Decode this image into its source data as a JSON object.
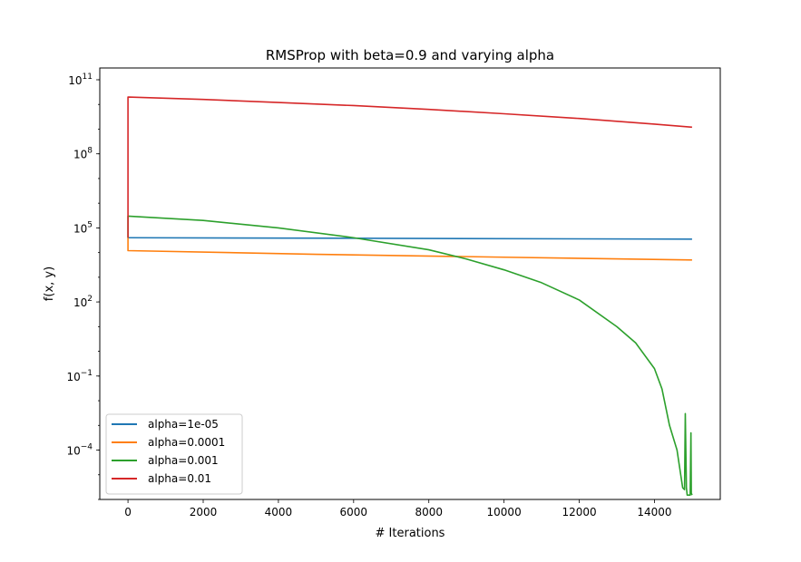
{
  "chart_data": {
    "type": "line",
    "title": "RMSProp with beta=0.9 and varying alpha",
    "xlabel": "# Iterations",
    "ylabel": "f(x, y)",
    "xlim": [
      -750,
      15750
    ],
    "ylim": [
      1e-06,
      300000000000.0
    ],
    "yscale": "log",
    "grid": false,
    "legend_position": "lower-left",
    "xticks": [
      0,
      2000,
      4000,
      6000,
      8000,
      10000,
      12000,
      14000
    ],
    "xtick_labels": [
      "0",
      "2000",
      "4000",
      "6000",
      "8000",
      "10000",
      "12000",
      "14000"
    ],
    "yticks": [
      0.0001,
      0.1,
      100.0,
      100000.0,
      100000000.0,
      100000000000.0
    ],
    "ytick_labels": [
      [
        "10",
        "−4"
      ],
      [
        "10",
        "−1"
      ],
      [
        "10",
        "2"
      ],
      [
        "10",
        "5"
      ],
      [
        "10",
        "8"
      ],
      [
        "10",
        "11"
      ]
    ],
    "series": [
      {
        "name": "alpha=1e-05",
        "color": "#1f77b4",
        "x": [
          0,
          0,
          15000
        ],
        "y": [
          40000,
          40000,
          35000
        ]
      },
      {
        "name": "alpha=0.0001",
        "color": "#ff7f0e",
        "x": [
          0,
          0,
          5000,
          10000,
          15000
        ],
        "y": [
          40000,
          12000,
          8500,
          6500,
          5000
        ]
      },
      {
        "name": "alpha=0.001",
        "color": "#2ca02c",
        "x": [
          0,
          0,
          2000,
          4000,
          6000,
          8000,
          9000,
          10000,
          11000,
          12000,
          13000,
          13500,
          14000,
          14200,
          14400,
          14600,
          14750,
          14800,
          14820,
          14850,
          14870,
          14900,
          14950,
          14970,
          14980,
          15000
        ],
        "y": [
          40000,
          300000,
          200000,
          100000,
          40000,
          13000,
          5500,
          2000,
          600,
          120,
          10,
          2.2,
          0.2,
          0.03,
          0.001,
          0.0001,
          3e-06,
          2.5e-06,
          0.003,
          3e-06,
          1.5e-06,
          1.5e-06,
          1.5e-06,
          0.0005,
          1.8e-06,
          1.5e-06
        ]
      },
      {
        "name": "alpha=0.01",
        "color": "#d62728",
        "x": [
          0,
          0,
          15,
          2000,
          4000,
          6000,
          8000,
          10000,
          12000,
          14000,
          15000
        ],
        "y": [
          40000,
          20000000000,
          20000000000,
          16000000000,
          12000000000,
          9000000000,
          6300000000,
          4200000000,
          2700000000,
          1600000000,
          1200000000
        ]
      }
    ]
  }
}
